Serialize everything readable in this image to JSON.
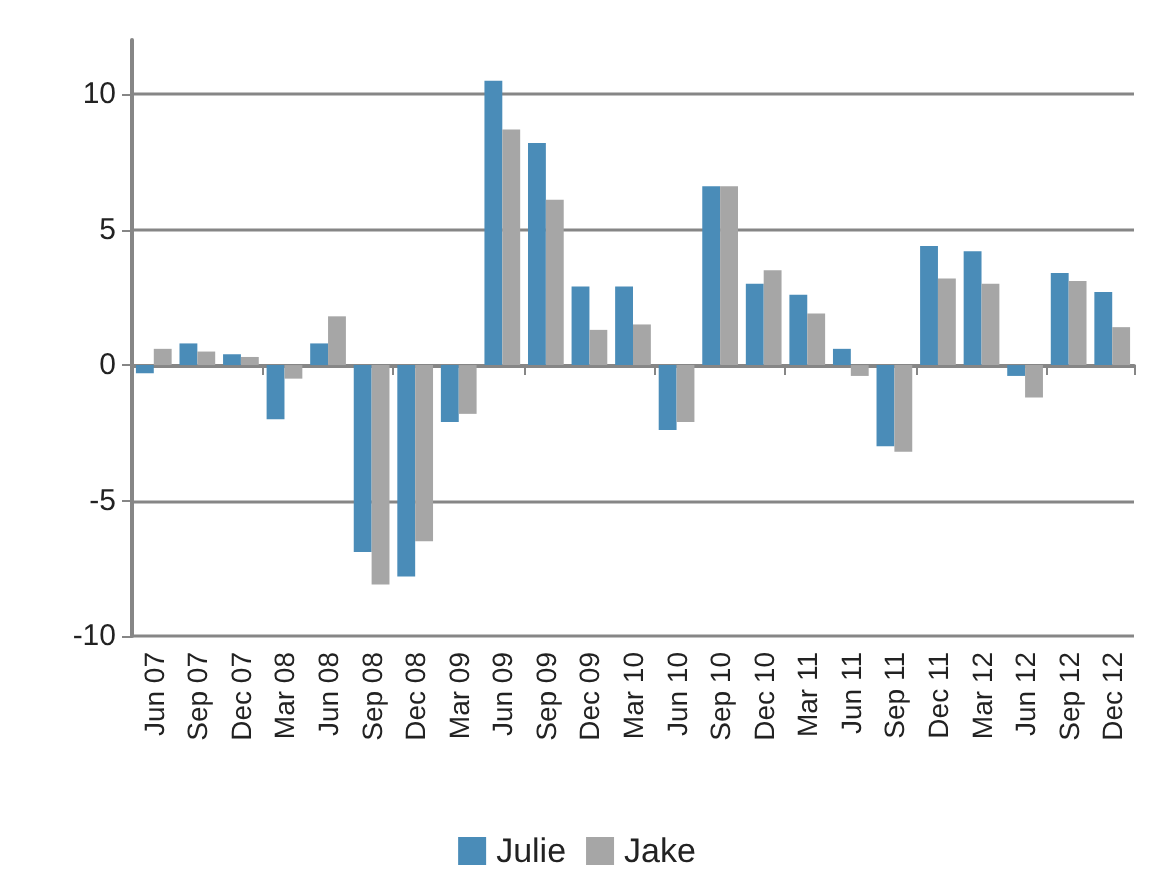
{
  "chart_data": {
    "type": "bar",
    "categories": [
      "Jun 07",
      "Sep 07",
      "Dec 07",
      "Mar 08",
      "Jun 08",
      "Sep 08",
      "Dec 08",
      "Mar 09",
      "Jun 09",
      "Sep 09",
      "Dec 09",
      "Mar 10",
      "Jun 10",
      "Sep 10",
      "Dec 10",
      "Mar 11",
      "Jun 11",
      "Sep 11",
      "Dec 11",
      "Mar 12",
      "Jun 12",
      "Sep 12",
      "Dec 12"
    ],
    "series": [
      {
        "name": "Julie",
        "color": "#4a8cb8",
        "values": [
          -0.3,
          0.8,
          0.4,
          -2.0,
          0.8,
          -6.9,
          -7.8,
          -2.1,
          10.5,
          8.2,
          2.9,
          2.9,
          -2.4,
          6.6,
          3.0,
          2.6,
          0.6,
          -3.0,
          4.4,
          4.2,
          -0.4,
          3.4,
          2.7
        ]
      },
      {
        "name": "Jake",
        "color": "#a6a6a6",
        "values": [
          0.6,
          0.5,
          0.3,
          -0.5,
          1.8,
          -8.1,
          -6.5,
          -1.8,
          8.7,
          6.1,
          1.3,
          1.5,
          -2.1,
          6.6,
          3.5,
          1.9,
          -0.4,
          -3.2,
          3.2,
          3.0,
          -1.2,
          3.1,
          1.4
        ]
      }
    ],
    "ylim": [
      -10,
      12
    ],
    "yticks": [
      -10,
      -5,
      0,
      5,
      10
    ],
    "grid": "y",
    "legend": "bottom"
  }
}
